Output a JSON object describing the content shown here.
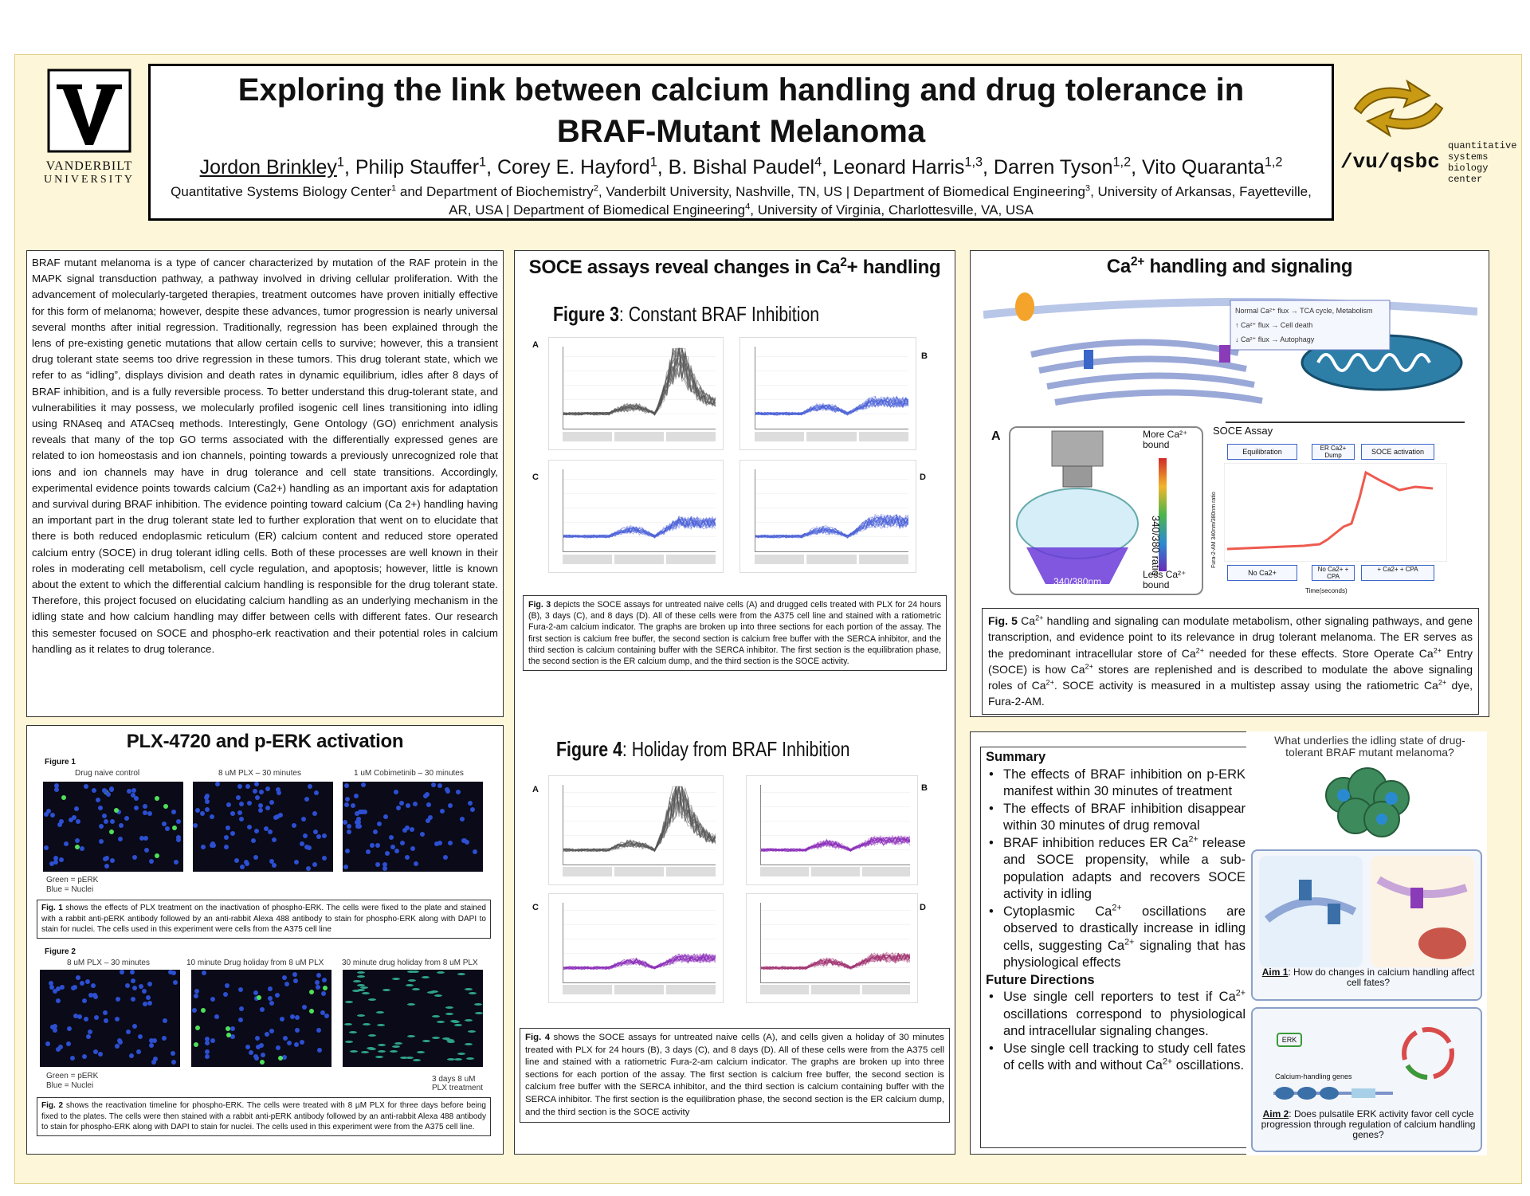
{
  "header": {
    "title": "Exploring the link between calcium handling and drug tolerance in BRAF-Mutant Melanoma",
    "authors_html": "<u>Jordon Brinkley</u><sup>1</sup>, Philip Stauffer<sup>1</sup>, Corey E. Hayford<sup>1</sup>, B. Bishal Paudel<sup>4</sup>, Leonard Harris<sup>1,3</sup>, Darren Tyson<sup>1,2</sup>, Vito Quaranta<sup>1,2</sup>",
    "affiliations_html": "Quantitative Systems Biology Center<sup>1</sup> and Department of Biochemistry<sup>2</sup>, Vanderbilt University, Nashville, TN, US | Department of Biomedical Engineering<sup>3</sup>, University of Arkansas, Fayetteville, AR, USA | Department of Biomedical Engineering<sup>4</sup>, University of Virginia, Charlottesville, VA, USA",
    "logo_left_line1": "VANDERBILT",
    "logo_left_line2": "UNIVERSITY",
    "logo_right_main": "/vu/qsbc",
    "logo_right_sub": [
      "quantitative",
      "systems",
      "biology",
      "center"
    ]
  },
  "intro": {
    "text": "BRAF mutant melanoma is a type of cancer characterized by mutation of the RAF protein in the MAPK signal transduction pathway, a pathway involved in driving cellular proliferation. With the advancement of molecularly-targeted therapies, treatment outcomes have proven initially effective for this form of melanoma; however, despite these advances, tumor progression is nearly universal several months after initial regression. Traditionally, regression has been explained through the lens of pre-existing genetic mutations that allow certain cells to survive; however, this a transient drug tolerant state seems too drive regression in these tumors. This drug tolerant state, which we refer to as “idling”, displays division and death rates in dynamic equilibrium, idles after 8 days of BRAF inhibition, and is a fully reversible process. To better understand this drug-tolerant state, and vulnerabilities it may possess, we molecularly profiled isogenic cell lines transitioning into idling using RNAseq and ATACseq methods. Interestingly, Gene Ontology (GO) enrichment analysis reveals that many of the top GO terms associated with the differentially expressed genes are related to ion homeostasis and ion channels, pointing towards a previously unrecognized role that ions and ion channels may have in drug tolerance and cell state transitions. Accordingly, experimental evidence points towards calcium (Ca2+) handling as an important axis for adaptation and survival during BRAF inhibition. The evidence pointing toward calcium (Ca 2+) handling having an important part in the drug tolerant state led to further exploration that went on to elucidate that there is both reduced endoplasmic reticulum (ER) calcium content and reduced store operated calcium entry (SOCE) in drug tolerant idling cells. Both of these processes are well known in their roles in moderating cell metabolism, cell cycle regulation, and apoptosis; however, little is known about the extent to which the differential calcium handling is responsible for the drug tolerant state. Therefore, this project focused on elucidating calcium handling as an underlying mechanism in the idling state and how calcium handling may differ between cells with different fates. Our research this semester focused on SOCE and phospho-erk reactivation and their potential roles in calcium handling as it relates to drug tolerance."
  },
  "perk": {
    "title": "PLX-4720 and p-ERK activation",
    "fig1_label": "Figure 1",
    "fig1_cols": [
      "Drug naive control",
      "8 uM PLX – 30 minutes",
      "1 uM Cobimetinib – 30 minutes"
    ],
    "legend_green": "Green = pERK",
    "legend_blue": "Blue = Nuclei",
    "fig1_caption_html": "<b>Fig. 1</b> shows the effects of PLX treatment on the inactivation of phospho-ERK. The cells were fixed to the plate and stained with a rabbit anti-pERK antibody followed by an anti-rabbit Alexa 488 antibody to stain for phospho-ERK along with DAPI to stain for nuclei. The cells used in this experiment were cells from the A375 cell line",
    "fig2_label": "Figure 2",
    "fig2_cols": [
      "8 uM PLX – 30 minutes",
      "10 minute Drug holiday from 8 uM PLX",
      "30 minute drug holiday from 8 uM PLX"
    ],
    "fig2_note": "3 days 8 uM PLX treatment",
    "fig2_caption_html": "<b>Fig. 2</b> shows the reactivation timeline for phospho-ERK. The cells were treated with 8 µM PLX for three days before being fixed to the plates. The cells were then stained with a rabbit anti-pERK antibody followed by an anti-rabbit Alexa 488 antibody to stain for phospho-ERK along with DAPI to stain for nuclei. The cells used in this experiment were from the A375 cell line."
  },
  "soce": {
    "title_html": "SOCE assays reveal changes in Ca<sup>2</sup>+ handling",
    "fig3_title_html": "<b>Figure 3</b>: Constant BRAF Inhibition",
    "fig3_caption_html": "<b>Fig. 3</b> depicts the SOCE assays for untreated naive cells (A) and drugged cells treated with PLX for 24 hours (B), 3 days (C), and 8 days (D). All of these cells were from the A375 cell line and stained with a ratiometric Fura-2-am calcium indicator. The graphs are broken up into three sections for each portion of the assay. The first section is calcium free buffer, the second section is calcium free buffer with the SERCA inhibitor, and the third section is calcium containing buffer with the SERCA inhibitor. The first section is the equilibration phase, the second section is the ER calcium dump, and the third section is the SOCE activity.",
    "fig4_title_html": "<b>Figure 4</b>: Holiday from BRAF Inhibition",
    "fig4_caption_html": "<b>Fig. 4</b> shows the SOCE assays for untreated naive cells (A), and cells given a holiday of 30 minutes treated with PLX for 24 hours (B), 3 days (C), and 8 days (D). All of these cells were from the A375 cell line and stained with a ratiometric Fura-2-am calcium indicator. The graphs are broken up into three sections for each portion of the assay. The first section is calcium free buffer, the second section is calcium free buffer with the SERCA inhibitor, and the third section is calcium containing buffer with the SERCA inhibitor. The first section is the equilibration phase, the second section is the ER calcium dump, and the third section is the SOCE activity",
    "panel_letters": [
      "A",
      "B",
      "C",
      "D"
    ]
  },
  "ca": {
    "title_html": "Ca<sup>2+</sup> handling and signaling",
    "diagram_labels": [
      "Normal Ca²⁺ flux → TCA cycle, Metabolism",
      "↑ Ca²⁺ flux → Cell death",
      "↓ Ca²⁺ flux → Autophagy"
    ],
    "assay_title": "SOCE Assay",
    "assay_phases": [
      "Equilibration",
      "ER Ca2+ Dump",
      "SOCE activation"
    ],
    "assay_buffers": [
      "No Ca2+",
      "No Ca2+ + CPA",
      "+ Ca2+ + CPA"
    ],
    "assay_xlabel": "Time(seconds)",
    "assay_ylabel": "Fura-2-AM 340nm/380nm ratio",
    "dish_more": "More Ca²⁺ bound",
    "dish_less": "Less Ca²⁺ bound",
    "dish_ratio": "340/380 ratio",
    "dish_wave": "340/380nm",
    "panel_A": "A",
    "fig5_caption_html": "<b>Fig. 5</b> Ca<sup>2+</sup> handling and signaling can modulate metabolism, other signaling pathways, and gene transcription, and evidence point to its relevance in drug tolerant melanoma. The ER serves as the predominant intracellular store of Ca<sup>2+</sup> needed for these effects. Store Operate Ca<sup>2+</sup> Entry (SOCE) is how Ca<sup>2+</sup> stores are replenished and is described to modulate the above signaling roles of Ca<sup>2+</sup>. SOCE activity is measured in a multistep assay using the ratiometric Ca<sup>2+</sup> dye, Fura-2-AM."
  },
  "summary": {
    "summary_title": "Summary",
    "summary_items_html": [
      "The effects of BRAF inhibition on p-ERK manifest within 30 minutes of treatment",
      "The effects of BRAF inhibition disappear within 30 minutes of drug removal",
      "BRAF inhibition reduces ER Ca<sup>2+</sup> release and SOCE propensity, while a sub-population adapts and recovers SOCE activity in idling",
      "Cytoplasmic Ca<sup>2+</sup> oscillations are observed to drastically increase in idling cells, suggesting Ca<sup>2+</sup> signaling that has physiological effects"
    ],
    "future_title": "Future Directions",
    "future_items_html": [
      "Use single cell reporters to test if Ca<sup>2+</sup> oscillations correspond to physiological and intracellular signaling changes.",
      "Use single cell tracking to study cell fates of cells with and without Ca<sup>2+</sup> oscillations."
    ]
  },
  "aims": {
    "question": "What underlies the idling state of drug-tolerant BRAF mutant melanoma?",
    "aim1_label": "Aim 1",
    "aim1_text": ": How do changes in calcium handling affect cell fates?",
    "aim2_label": "Aim 2",
    "aim2_text": ": Does pulsatile ERK activity favor cell cycle progression through regulation of calcium handling genes?",
    "erk_label": "ERK",
    "genes_label": "Calcium-handling genes"
  },
  "colors": {
    "poster_bg": "#fdf6d8",
    "accent_gold": "#c99a14",
    "trace_naive": "#555555",
    "trace_blue": "#4a5fd6",
    "trace_purple": "#8a2bb8",
    "trace_red": "#ee5a4f"
  }
}
